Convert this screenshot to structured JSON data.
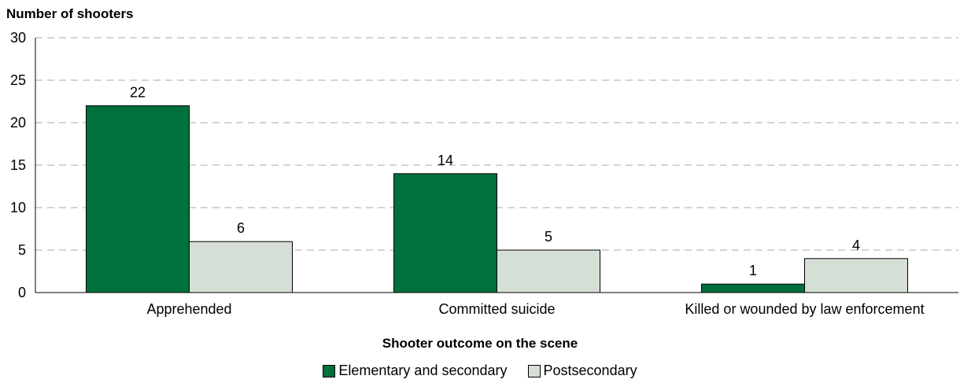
{
  "chart_data": {
    "type": "bar",
    "ylabel": "Number of shooters",
    "xlabel": "Shooter outcome on the scene",
    "ylim": [
      0,
      30
    ],
    "yticks": [
      0,
      5,
      10,
      15,
      20,
      25,
      30
    ],
    "grid": true,
    "grid_style": "dashed",
    "legend_position": "bottom",
    "categories": [
      "Apprehended",
      "Committed suicide",
      "Killed or wounded by law enforcement"
    ],
    "series": [
      {
        "name": "Elementary and secondary",
        "color": "#00703c",
        "values": [
          22,
          14,
          1
        ]
      },
      {
        "name": "Postsecondary",
        "color": "#d5dfd5",
        "values": [
          6,
          5,
          4
        ]
      }
    ]
  }
}
